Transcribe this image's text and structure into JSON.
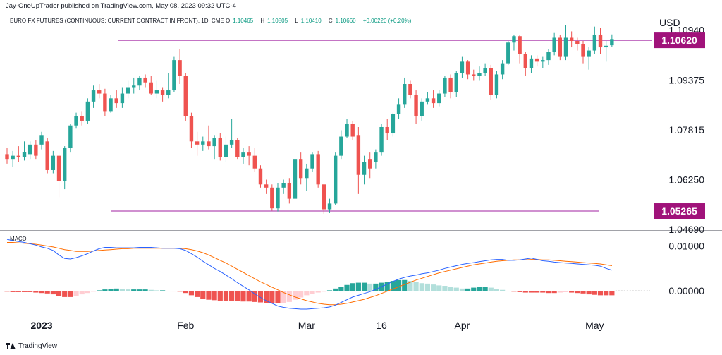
{
  "header": {
    "published": "Jay-OneUpTrader published on TradingView.com, May 08, 2023 09:32 UTC-4",
    "symbol": "EURO FX FUTURES (CONTINUOUS: CURRENT CONTRACT IN FRONT), 1D, CME",
    "ohlc": {
      "o_label": "O",
      "o": "1.10465",
      "h_label": "H",
      "h": "1.10805",
      "l_label": "L",
      "l": "1.10410",
      "c_label": "C",
      "c": "1.10660",
      "change": "+0.00220 (+0.20%)"
    },
    "currency": "USD"
  },
  "macd_label": "MACD",
  "brand": "TradingView",
  "colors": {
    "up": "#26a69a",
    "down": "#ef5350",
    "hist_up_strong": "#26a69a",
    "hist_up_weak": "#b2dfdb",
    "hist_down_strong": "#ef5350",
    "hist_down_weak": "#ffcdd2",
    "macd_line": "#2962ff",
    "signal_line": "#ff6d00",
    "level_line": "#a020a0",
    "tag_bg": "#a0127a"
  },
  "chart_data": [
    {
      "type": "candlestick",
      "yticks": [
        "1.10940",
        "1.09375",
        "1.07815",
        "1.06250",
        "1.04690"
      ],
      "ylim": [
        1.0469,
        1.1122
      ],
      "xticks": [
        "2023",
        "Feb",
        "Mar",
        "16",
        "Apr",
        "May"
      ],
      "levels": [
        {
          "value": 1.1062,
          "label": "1.10620"
        },
        {
          "value": 1.05265,
          "label": "1.05265"
        }
      ],
      "candles": [
        {
          "o": 1.0705,
          "h": 1.0725,
          "l": 1.0675,
          "c": 1.069
        },
        {
          "o": 1.069,
          "h": 1.0715,
          "l": 1.0665,
          "c": 1.07
        },
        {
          "o": 1.07,
          "h": 1.073,
          "l": 1.068,
          "c": 1.0695
        },
        {
          "o": 1.0695,
          "h": 1.0745,
          "l": 1.0685,
          "c": 1.0712
        },
        {
          "o": 1.0705,
          "h": 1.0745,
          "l": 1.069,
          "c": 1.0735
        },
        {
          "o": 1.0735,
          "h": 1.075,
          "l": 1.069,
          "c": 1.07
        },
        {
          "o": 1.0735,
          "h": 1.0775,
          "l": 1.072,
          "c": 1.0765
        },
        {
          "o": 1.0745,
          "h": 1.0755,
          "l": 1.0645,
          "c": 1.0655
        },
        {
          "o": 1.0655,
          "h": 1.0715,
          "l": 1.0645,
          "c": 1.07
        },
        {
          "o": 1.07,
          "h": 1.071,
          "l": 1.057,
          "c": 1.062
        },
        {
          "o": 1.062,
          "h": 1.073,
          "l": 1.0595,
          "c": 1.0725
        },
        {
          "o": 1.0725,
          "h": 1.08,
          "l": 1.071,
          "c": 1.0795
        },
        {
          "o": 1.0795,
          "h": 1.0835,
          "l": 1.0785,
          "c": 1.0825
        },
        {
          "o": 1.0825,
          "h": 1.084,
          "l": 1.0795,
          "c": 1.081
        },
        {
          "o": 1.081,
          "h": 1.088,
          "l": 1.08,
          "c": 1.087
        },
        {
          "o": 1.087,
          "h": 1.092,
          "l": 1.085,
          "c": 1.0905
        },
        {
          "o": 1.0905,
          "h": 1.0925,
          "l": 1.088,
          "c": 1.0895
        },
        {
          "o": 1.0895,
          "h": 1.091,
          "l": 1.0825,
          "c": 1.084
        },
        {
          "o": 1.084,
          "h": 1.089,
          "l": 1.0835,
          "c": 1.088
        },
        {
          "o": 1.088,
          "h": 1.0905,
          "l": 1.085,
          "c": 1.0865
        },
        {
          "o": 1.0865,
          "h": 1.0915,
          "l": 1.085,
          "c": 1.0895
        },
        {
          "o": 1.0895,
          "h": 1.0935,
          "l": 1.088,
          "c": 1.0915
        },
        {
          "o": 1.0915,
          "h": 1.0945,
          "l": 1.0895,
          "c": 1.092
        },
        {
          "o": 1.092,
          "h": 1.095,
          "l": 1.0905,
          "c": 1.0945
        },
        {
          "o": 1.0945,
          "h": 1.0955,
          "l": 1.0915,
          "c": 1.093
        },
        {
          "o": 1.093,
          "h": 1.095,
          "l": 1.089,
          "c": 1.0895
        },
        {
          "o": 1.0895,
          "h": 1.0935,
          "l": 1.088,
          "c": 1.0905
        },
        {
          "o": 1.0905,
          "h": 1.0915,
          "l": 1.087,
          "c": 1.089
        },
        {
          "o": 1.089,
          "h": 1.096,
          "l": 1.088,
          "c": 1.0905
        },
        {
          "o": 1.0905,
          "h": 1.101,
          "l": 1.09,
          "c": 1.1
        },
        {
          "o": 1.1,
          "h": 1.1035,
          "l": 1.0925,
          "c": 1.095
        },
        {
          "o": 1.095,
          "h": 1.096,
          "l": 1.081,
          "c": 1.0825
        },
        {
          "o": 1.0825,
          "h": 1.0835,
          "l": 1.0725,
          "c": 1.0745
        },
        {
          "o": 1.0745,
          "h": 1.0775,
          "l": 1.07,
          "c": 1.0735
        },
        {
          "o": 1.0735,
          "h": 1.076,
          "l": 1.0715,
          "c": 1.0745
        },
        {
          "o": 1.0745,
          "h": 1.0795,
          "l": 1.072,
          "c": 1.073
        },
        {
          "o": 1.073,
          "h": 1.0765,
          "l": 1.069,
          "c": 1.0755
        },
        {
          "o": 1.0755,
          "h": 1.077,
          "l": 1.0685,
          "c": 1.0695
        },
        {
          "o": 1.0695,
          "h": 1.076,
          "l": 1.068,
          "c": 1.0735
        },
        {
          "o": 1.0735,
          "h": 1.0815,
          "l": 1.0725,
          "c": 1.0748
        },
        {
          "o": 1.0748,
          "h": 1.0755,
          "l": 1.069,
          "c": 1.0695
        },
        {
          "o": 1.0695,
          "h": 1.0725,
          "l": 1.0675,
          "c": 1.071
        },
        {
          "o": 1.071,
          "h": 1.073,
          "l": 1.067,
          "c": 1.07
        },
        {
          "o": 1.07,
          "h": 1.0725,
          "l": 1.065,
          "c": 1.066
        },
        {
          "o": 1.066,
          "h": 1.067,
          "l": 1.06,
          "c": 1.061
        },
        {
          "o": 1.061,
          "h": 1.0625,
          "l": 1.058,
          "c": 1.06
        },
        {
          "o": 1.06,
          "h": 1.061,
          "l": 1.0528,
          "c": 1.0535
        },
        {
          "o": 1.0535,
          "h": 1.0615,
          "l": 1.0525,
          "c": 1.06
        },
        {
          "o": 1.06,
          "h": 1.0625,
          "l": 1.058,
          "c": 1.0615
        },
        {
          "o": 1.0615,
          "h": 1.063,
          "l": 1.055,
          "c": 1.0565
        },
        {
          "o": 1.0565,
          "h": 1.0695,
          "l": 1.056,
          "c": 1.069
        },
        {
          "o": 1.069,
          "h": 1.071,
          "l": 1.061,
          "c": 1.063
        },
        {
          "o": 1.063,
          "h": 1.0675,
          "l": 1.059,
          "c": 1.066
        },
        {
          "o": 1.066,
          "h": 1.071,
          "l": 1.065,
          "c": 1.0705
        },
        {
          "o": 1.0705,
          "h": 1.0715,
          "l": 1.06,
          "c": 1.061
        },
        {
          "o": 1.061,
          "h": 1.061,
          "l": 1.0518,
          "c": 1.0532
        },
        {
          "o": 1.0532,
          "h": 1.0565,
          "l": 1.052,
          "c": 1.055
        },
        {
          "o": 1.055,
          "h": 1.071,
          "l": 1.0545,
          "c": 1.07
        },
        {
          "o": 1.07,
          "h": 1.078,
          "l": 1.069,
          "c": 1.076
        },
        {
          "o": 1.076,
          "h": 1.0815,
          "l": 1.0755,
          "c": 1.08
        },
        {
          "o": 1.08,
          "h": 1.081,
          "l": 1.075,
          "c": 1.076
        },
        {
          "o": 1.0765,
          "h": 1.079,
          "l": 1.058,
          "c": 1.064
        },
        {
          "o": 1.064,
          "h": 1.07,
          "l": 1.061,
          "c": 1.068
        },
        {
          "o": 1.069,
          "h": 1.071,
          "l": 1.063,
          "c": 1.066
        },
        {
          "o": 1.068,
          "h": 1.072,
          "l": 1.066,
          "c": 1.071
        },
        {
          "o": 1.071,
          "h": 1.08,
          "l": 1.07,
          "c": 1.079
        },
        {
          "o": 1.079,
          "h": 1.0815,
          "l": 1.075,
          "c": 1.077
        },
        {
          "o": 1.077,
          "h": 1.0835,
          "l": 1.076,
          "c": 1.083
        },
        {
          "o": 1.083,
          "h": 1.088,
          "l": 1.0815,
          "c": 1.086
        },
        {
          "o": 1.086,
          "h": 1.0945,
          "l": 1.085,
          "c": 1.0925
        },
        {
          "o": 1.0925,
          "h": 1.0935,
          "l": 1.088,
          "c": 1.089
        },
        {
          "o": 1.089,
          "h": 1.0905,
          "l": 1.08,
          "c": 1.0825
        },
        {
          "o": 1.0825,
          "h": 1.088,
          "l": 1.081,
          "c": 1.087
        },
        {
          "o": 1.087,
          "h": 1.09,
          "l": 1.086,
          "c": 1.088
        },
        {
          "o": 1.088,
          "h": 1.0905,
          "l": 1.085,
          "c": 1.0865
        },
        {
          "o": 1.0865,
          "h": 1.0905,
          "l": 1.0855,
          "c": 1.0895
        },
        {
          "o": 1.0895,
          "h": 1.095,
          "l": 1.0885,
          "c": 1.0945
        },
        {
          "o": 1.0945,
          "h": 1.0955,
          "l": 1.088,
          "c": 1.09
        },
        {
          "o": 1.09,
          "h": 1.0965,
          "l": 1.0885,
          "c": 1.096
        },
        {
          "o": 1.096,
          "h": 1.101,
          "l": 1.0945,
          "c": 1.0995
        },
        {
          "o": 1.0995,
          "h": 1.1,
          "l": 1.094,
          "c": 1.0955
        },
        {
          "o": 1.0955,
          "h": 1.097,
          "l": 1.0935,
          "c": 1.095
        },
        {
          "o": 1.095,
          "h": 1.098,
          "l": 1.0935,
          "c": 1.096
        },
        {
          "o": 1.096,
          "h": 1.099,
          "l": 1.095,
          "c": 1.0975
        },
        {
          "o": 1.0975,
          "h": 1.0985,
          "l": 1.0875,
          "c": 1.089
        },
        {
          "o": 1.089,
          "h": 1.0965,
          "l": 1.088,
          "c": 1.0955
        },
        {
          "o": 1.0955,
          "h": 1.1,
          "l": 1.094,
          "c": 1.099
        },
        {
          "o": 1.099,
          "h": 1.106,
          "l": 1.0985,
          "c": 1.1055
        },
        {
          "o": 1.1055,
          "h": 1.108,
          "l": 1.103,
          "c": 1.1075
        },
        {
          "o": 1.1075,
          "h": 1.108,
          "l": 1.099,
          "c": 1.102
        },
        {
          "o": 1.102,
          "h": 1.1025,
          "l": 1.095,
          "c": 1.0975
        },
        {
          "o": 1.0975,
          "h": 1.1015,
          "l": 1.096,
          "c": 1.1005
        },
        {
          "o": 1.1005,
          "h": 1.1015,
          "l": 1.098,
          "c": 1.0995
        },
        {
          "o": 1.0995,
          "h": 1.101,
          "l": 1.0975,
          "c": 1.1
        },
        {
          "o": 1.1,
          "h": 1.1035,
          "l": 1.0985,
          "c": 1.1025
        },
        {
          "o": 1.1025,
          "h": 1.1085,
          "l": 1.1015,
          "c": 1.107
        },
        {
          "o": 1.107,
          "h": 1.108,
          "l": 1.1,
          "c": 1.101
        },
        {
          "o": 1.101,
          "h": 1.111,
          "l": 1.1,
          "c": 1.107
        },
        {
          "o": 1.107,
          "h": 1.109,
          "l": 1.104,
          "c": 1.106
        },
        {
          "o": 1.106,
          "h": 1.107,
          "l": 1.103,
          "c": 1.105
        },
        {
          "o": 1.105,
          "h": 1.106,
          "l": 1.099,
          "c": 1.101
        },
        {
          "o": 1.101,
          "h": 1.104,
          "l": 1.097,
          "c": 1.103
        },
        {
          "o": 1.103,
          "h": 1.1105,
          "l": 1.102,
          "c": 1.108
        },
        {
          "o": 1.108,
          "h": 1.11,
          "l": 1.102,
          "c": 1.104
        },
        {
          "o": 1.104,
          "h": 1.106,
          "l": 1.0995,
          "c": 1.1045
        },
        {
          "o": 1.10465,
          "h": 1.10805,
          "l": 1.1041,
          "c": 1.1066
        }
      ]
    },
    {
      "type": "macd",
      "yticks": [
        "0.01000",
        "0.00000"
      ],
      "ylim": [
        -0.0052,
        0.0123
      ],
      "hist": [
        -0.0002,
        -0.0003,
        -0.0003,
        -0.0003,
        -0.0003,
        -0.0004,
        -0.0005,
        -0.0006,
        -0.0008,
        -0.0012,
        -0.0014,
        -0.0014,
        -0.0012,
        -0.0008,
        -0.0005,
        -0.0002,
        0.0001,
        0.0003,
        0.0004,
        0.0005,
        0.0004,
        0.0003,
        0.0003,
        0.0003,
        0.0003,
        0.0002,
        0.0001,
        0.0001,
        0.0,
        -0.0001,
        -0.0002,
        -0.0005,
        -0.001,
        -0.0014,
        -0.0018,
        -0.002,
        -0.0021,
        -0.0022,
        -0.0022,
        -0.0022,
        -0.0023,
        -0.0024,
        -0.0024,
        -0.0025,
        -0.0026,
        -0.0027,
        -0.0028,
        -0.0028,
        -0.0027,
        -0.0025,
        -0.002,
        -0.0015,
        -0.001,
        -0.0007,
        -0.0004,
        -0.0002,
        0.0001,
        0.0005,
        0.0009,
        0.0013,
        0.0017,
        0.0018,
        0.0018,
        0.0016,
        0.0016,
        0.0018,
        0.002,
        0.0022,
        0.0024,
        0.0024,
        0.0022,
        0.0019,
        0.0017,
        0.0016,
        0.0014,
        0.0012,
        0.0011,
        0.0009,
        0.0007,
        0.0005,
        0.0005,
        0.0007,
        0.0009,
        0.0009,
        0.0007,
        0.0004,
        0.0002,
        0.0,
        -0.0002,
        -0.0003,
        -0.0004,
        -0.0004,
        -0.0004,
        -0.0004,
        -0.0005,
        -0.0005,
        -0.0004,
        -0.0003,
        -0.0004,
        -0.0005,
        -0.0006,
        -0.0008,
        -0.0009,
        -0.001,
        -0.001,
        -0.001
      ],
      "macd": [
        0.0115,
        0.0112,
        0.011,
        0.0108,
        0.0105,
        0.0102,
        0.0098,
        0.0095,
        0.009,
        0.008,
        0.0072,
        0.0071,
        0.0074,
        0.0078,
        0.0083,
        0.0089,
        0.0094,
        0.0097,
        0.0097,
        0.0096,
        0.0096,
        0.0096,
        0.0096,
        0.0097,
        0.0097,
        0.0097,
        0.0096,
        0.0095,
        0.0095,
        0.0095,
        0.0094,
        0.009,
        0.0083,
        0.0075,
        0.0066,
        0.0058,
        0.005,
        0.0043,
        0.0035,
        0.0027,
        0.0018,
        0.001,
        0.0002,
        -0.0007,
        -0.0015,
        -0.0022,
        -0.0028,
        -0.0034,
        -0.0037,
        -0.0039,
        -0.004,
        -0.0041,
        -0.0041,
        -0.004,
        -0.0039,
        -0.0038,
        -0.0036,
        -0.0032,
        -0.0026,
        -0.002,
        -0.0014,
        -0.001,
        -0.0006,
        -0.0002,
        0.0003,
        0.0009,
        0.0015,
        0.0021,
        0.0026,
        0.003,
        0.0033,
        0.0035,
        0.0038,
        0.004,
        0.0043,
        0.0046,
        0.005,
        0.0053,
        0.0056,
        0.0059,
        0.0061,
        0.0063,
        0.0065,
        0.0067,
        0.0069,
        0.007,
        0.007,
        0.0068,
        0.0068,
        0.0069,
        0.0071,
        0.0073,
        0.007,
        0.0067,
        0.0066,
        0.0064,
        0.0063,
        0.0062,
        0.0061,
        0.006,
        0.0059,
        0.0058,
        0.0057,
        0.0055,
        0.005,
        0.0046
      ],
      "signal": [
        0.0108,
        0.0108,
        0.0107,
        0.0106,
        0.0105,
        0.0104,
        0.0102,
        0.01,
        0.0098,
        0.0095,
        0.0092,
        0.009,
        0.0088,
        0.0088,
        0.0088,
        0.0089,
        0.009,
        0.0091,
        0.0092,
        0.0093,
        0.0094,
        0.0094,
        0.0095,
        0.0095,
        0.0095,
        0.0095,
        0.0095,
        0.0095,
        0.0095,
        0.0095,
        0.0095,
        0.0094,
        0.0092,
        0.0089,
        0.0085,
        0.008,
        0.0074,
        0.0068,
        0.0062,
        0.0055,
        0.0048,
        0.0041,
        0.0034,
        0.0027,
        0.002,
        0.0014,
        0.0008,
        0.0002,
        -0.0004,
        -0.0009,
        -0.0014,
        -0.0018,
        -0.0022,
        -0.0025,
        -0.0028,
        -0.003,
        -0.0031,
        -0.0031,
        -0.003,
        -0.0028,
        -0.0025,
        -0.0022,
        -0.0019,
        -0.0015,
        -0.0011,
        -0.0006,
        -0.0001,
        0.0004,
        0.0009,
        0.0014,
        0.0019,
        0.0024,
        0.0028,
        0.0032,
        0.0036,
        0.004,
        0.0043,
        0.0046,
        0.0049,
        0.0052,
        0.0055,
        0.0058,
        0.006,
        0.0062,
        0.0064,
        0.0066,
        0.0067,
        0.0068,
        0.0069,
        0.0069,
        0.0069,
        0.007,
        0.007,
        0.0069,
        0.0069,
        0.0068,
        0.0067,
        0.0066,
        0.0065,
        0.0064,
        0.0063,
        0.0062,
        0.0061,
        0.006,
        0.0058,
        0.0056
      ]
    }
  ]
}
